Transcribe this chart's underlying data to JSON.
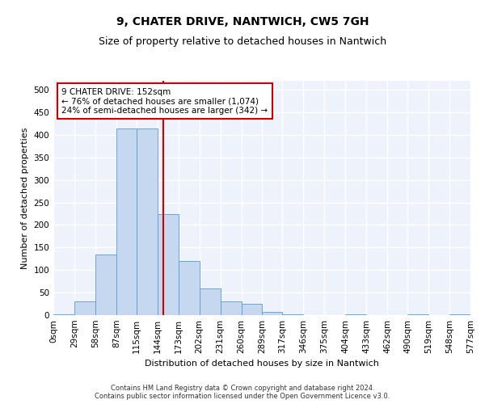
{
  "title_line1": "9, CHATER DRIVE, NANTWICH, CW5 7GH",
  "title_line2": "Size of property relative to detached houses in Nantwich",
  "xlabel": "Distribution of detached houses by size in Nantwich",
  "ylabel": "Number of detached properties",
  "footnote": "Contains HM Land Registry data © Crown copyright and database right 2024.\nContains public sector information licensed under the Open Government Licence v3.0.",
  "bin_edges": [
    0,
    29,
    58,
    87,
    115,
    144,
    173,
    202,
    231,
    260,
    289,
    317,
    346,
    375,
    404,
    433,
    462,
    490,
    519,
    548,
    577
  ],
  "bin_labels": [
    "0sqm",
    "29sqm",
    "58sqm",
    "87sqm",
    "115sqm",
    "144sqm",
    "173sqm",
    "202sqm",
    "231sqm",
    "260sqm",
    "289sqm",
    "317sqm",
    "346sqm",
    "375sqm",
    "404sqm",
    "433sqm",
    "462sqm",
    "490sqm",
    "519sqm",
    "548sqm",
    "577sqm"
  ],
  "counts": [
    2,
    30,
    135,
    415,
    415,
    225,
    120,
    60,
    30,
    25,
    8,
    1,
    0,
    0,
    1,
    0,
    0,
    1,
    0,
    1
  ],
  "bar_color": "#c5d8f0",
  "bar_edge_color": "#5b9bd5",
  "property_line_x": 152,
  "property_line_color": "#cc0000",
  "annotation_text": "9 CHATER DRIVE: 152sqm\n← 76% of detached houses are smaller (1,074)\n24% of semi-detached houses are larger (342) →",
  "annotation_box_color": "#cc0000",
  "ylim": [
    0,
    520
  ],
  "yticks": [
    0,
    50,
    100,
    150,
    200,
    250,
    300,
    350,
    400,
    450,
    500
  ],
  "background_color": "#eef2fa",
  "grid_color": "#ffffff",
  "title_fontsize": 10,
  "subtitle_fontsize": 9,
  "axis_fontsize": 8,
  "tick_fontsize": 7.5,
  "footnote_fontsize": 6.0
}
